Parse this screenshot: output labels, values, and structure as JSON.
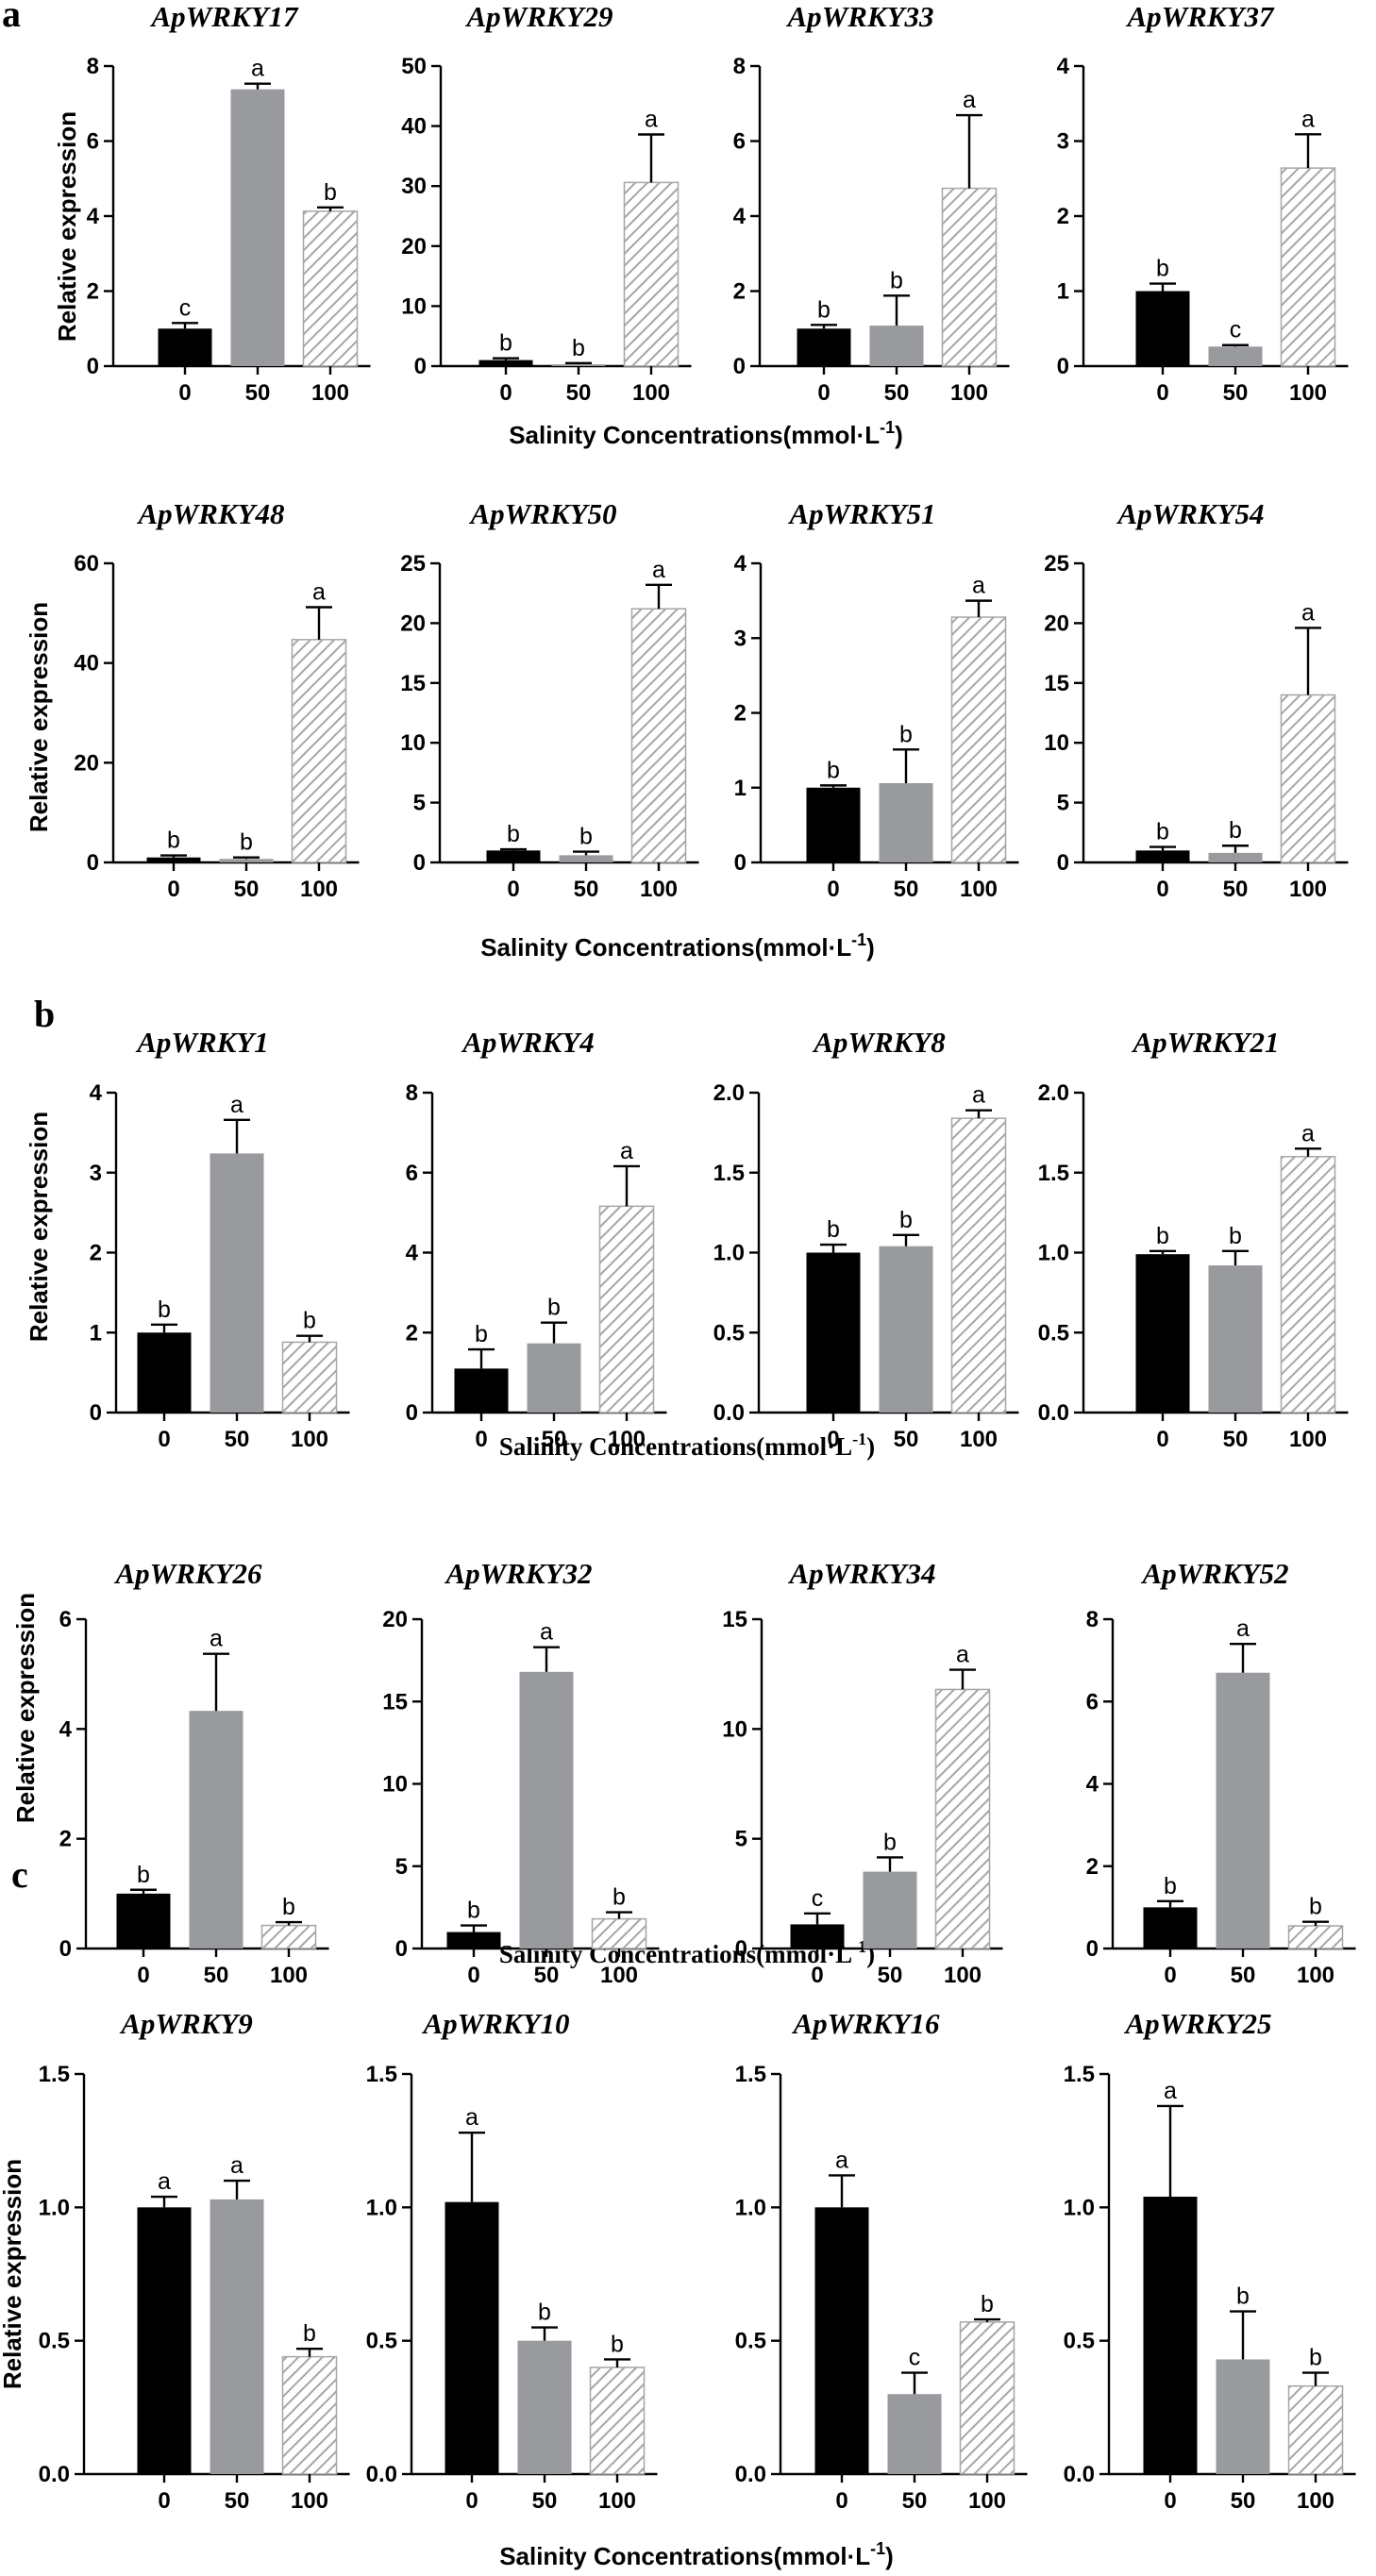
{
  "colors": {
    "c0": "#000000",
    "c50": "#999a9e",
    "c100": "#ffffff",
    "hatch": "#a6a6aa",
    "axis": "#000000"
  },
  "labels": {
    "ylabel": "Relative expression",
    "xlabel_prefix": "Salinity Concentrations(mmol·L",
    "xlabel_sup": "-1",
    "xlabel_suffix": ")"
  },
  "panels": [
    {
      "letter": "a"
    },
    {
      "letter": "b"
    },
    {
      "letter": "c"
    }
  ],
  "chart_data": [
    {
      "type": "bar",
      "title": "ApWRKY17",
      "categories": [
        "0",
        "50",
        "100"
      ],
      "values": [
        1,
        7.38,
        4.13
      ],
      "errors": [
        0.15,
        0.15,
        0.1
      ],
      "sig": [
        "c",
        "a",
        "b"
      ],
      "ylim": [
        0,
        8
      ],
      "yticks": [
        "0",
        "2",
        "4",
        "6",
        "8"
      ]
    },
    {
      "type": "bar",
      "title": "ApWRKY29",
      "categories": [
        "0",
        "50",
        "100"
      ],
      "values": [
        1,
        0.3,
        30.6
      ],
      "errors": [
        0.3,
        0.2,
        8.0
      ],
      "sig": [
        "b",
        "b",
        "a"
      ],
      "ylim": [
        0,
        50
      ],
      "yticks": [
        "0",
        "10",
        "20",
        "30",
        "40",
        "50"
      ]
    },
    {
      "type": "bar",
      "title": "ApWRKY33",
      "categories": [
        "0",
        "50",
        "100"
      ],
      "values": [
        1,
        1.08,
        4.74
      ],
      "errors": [
        0.1,
        0.8,
        1.95
      ],
      "sig": [
        "b",
        "b",
        "a"
      ],
      "ylim": [
        0,
        8
      ],
      "yticks": [
        "0",
        "2",
        "4",
        "6",
        "8"
      ]
    },
    {
      "type": "bar",
      "title": "ApWRKY37",
      "categories": [
        "0",
        "50",
        "100"
      ],
      "values": [
        1,
        0.26,
        2.64
      ],
      "errors": [
        0.1,
        0.02,
        0.45
      ],
      "sig": [
        "b",
        "c",
        "a"
      ],
      "ylim": [
        0,
        4
      ],
      "yticks": [
        "0",
        "1",
        "2",
        "3",
        "4"
      ]
    },
    {
      "type": "bar",
      "title": "ApWRKY48",
      "categories": [
        "0",
        "50",
        "100"
      ],
      "values": [
        1,
        0.7,
        44.7
      ],
      "errors": [
        0.4,
        0.3,
        6.5
      ],
      "sig": [
        "b",
        "b",
        "a"
      ],
      "ylim": [
        0,
        60
      ],
      "yticks": [
        "0",
        "20",
        "40",
        "60"
      ]
    },
    {
      "type": "bar",
      "title": "ApWRKY50",
      "categories": [
        "0",
        "50",
        "100"
      ],
      "values": [
        1,
        0.6,
        21.2
      ],
      "errors": [
        0.1,
        0.3,
        2.0
      ],
      "sig": [
        "b",
        "b",
        "a"
      ],
      "ylim": [
        0,
        25
      ],
      "yticks": [
        "0",
        "5",
        "10",
        "15",
        "20",
        "25"
      ]
    },
    {
      "type": "bar",
      "title": "ApWRKY51",
      "categories": [
        "0",
        "50",
        "100"
      ],
      "values": [
        1,
        1.06,
        3.28
      ],
      "errors": [
        0.03,
        0.45,
        0.22
      ],
      "sig": [
        "b",
        "b",
        "a"
      ],
      "ylim": [
        0,
        4
      ],
      "yticks": [
        "0",
        "1",
        "2",
        "3",
        "4"
      ]
    },
    {
      "type": "bar",
      "title": "ApWRKY54",
      "categories": [
        "0",
        "50",
        "100"
      ],
      "values": [
        1,
        0.8,
        14.0
      ],
      "errors": [
        0.3,
        0.6,
        5.6
      ],
      "sig": [
        "b",
        "b",
        "a"
      ],
      "ylim": [
        0,
        25
      ],
      "yticks": [
        "0",
        "5",
        "10",
        "15",
        "20",
        "25"
      ]
    },
    {
      "type": "bar",
      "title": "ApWRKY1",
      "categories": [
        "0",
        "50",
        "100"
      ],
      "values": [
        1,
        3.24,
        0.88
      ],
      "errors": [
        0.1,
        0.42,
        0.08
      ],
      "sig": [
        "b",
        "a",
        "b"
      ],
      "ylim": [
        0,
        4
      ],
      "yticks": [
        "0",
        "1",
        "2",
        "3",
        "4"
      ]
    },
    {
      "type": "bar",
      "title": "ApWRKY4",
      "categories": [
        "0",
        "50",
        "100"
      ],
      "values": [
        1.1,
        1.73,
        5.16
      ],
      "errors": [
        0.48,
        0.52,
        1.0
      ],
      "sig": [
        "b",
        "b",
        "a"
      ],
      "ylim": [
        0,
        8
      ],
      "yticks": [
        "0",
        "2",
        "4",
        "6",
        "8"
      ]
    },
    {
      "type": "bar",
      "title": "ApWRKY8",
      "categories": [
        "0",
        "50",
        "100"
      ],
      "values": [
        1,
        1.04,
        1.84
      ],
      "errors": [
        0.05,
        0.07,
        0.05
      ],
      "sig": [
        "b",
        "b",
        "a"
      ],
      "ylim": [
        0,
        2
      ],
      "yticks": [
        "0.0",
        "0.5",
        "1.0",
        "1.5",
        "2.0"
      ]
    },
    {
      "type": "bar",
      "title": "ApWRKY21",
      "categories": [
        "0",
        "50",
        "100"
      ],
      "values": [
        0.99,
        0.92,
        1.6
      ],
      "errors": [
        0.02,
        0.09,
        0.05
      ],
      "sig": [
        "b",
        "b",
        "a"
      ],
      "ylim": [
        0,
        2
      ],
      "yticks": [
        "0.0",
        "0.5",
        "1.0",
        "1.5",
        "2.0"
      ]
    },
    {
      "type": "bar",
      "title": "ApWRKY26",
      "categories": [
        "0",
        "50",
        "100"
      ],
      "values": [
        1,
        4.33,
        0.42
      ],
      "errors": [
        0.07,
        1.04,
        0.06
      ],
      "sig": [
        "b",
        "a",
        "b"
      ],
      "ylim": [
        0,
        6
      ],
      "yticks": [
        "0",
        "2",
        "4",
        "6"
      ]
    },
    {
      "type": "bar",
      "title": "ApWRKY32",
      "categories": [
        "0",
        "50",
        "100"
      ],
      "values": [
        1,
        16.8,
        1.8
      ],
      "errors": [
        0.4,
        1.5,
        0.4
      ],
      "sig": [
        "b",
        "a",
        "b"
      ],
      "ylim": [
        0,
        20
      ],
      "yticks": [
        "0",
        "5",
        "10",
        "15",
        "20"
      ]
    },
    {
      "type": "bar",
      "title": "ApWRKY34",
      "categories": [
        "0",
        "50",
        "100"
      ],
      "values": [
        1.1,
        3.5,
        11.8
      ],
      "errors": [
        0.5,
        0.65,
        0.9
      ],
      "sig": [
        "c",
        "b",
        "a"
      ],
      "ylim": [
        0,
        15
      ],
      "yticks": [
        "0",
        "5",
        "10",
        "15"
      ]
    },
    {
      "type": "bar",
      "title": "ApWRKY52",
      "categories": [
        "0",
        "50",
        "100"
      ],
      "values": [
        1,
        6.7,
        0.55
      ],
      "errors": [
        0.15,
        0.7,
        0.1
      ],
      "sig": [
        "b",
        "a",
        "b"
      ],
      "ylim": [
        0,
        8
      ],
      "yticks": [
        "0",
        "2",
        "4",
        "6",
        "8"
      ]
    },
    {
      "type": "bar",
      "title": "ApWRKY9",
      "categories": [
        "0",
        "50",
        "100"
      ],
      "values": [
        1,
        1.03,
        0.44
      ],
      "errors": [
        0.04,
        0.07,
        0.03
      ],
      "sig": [
        "a",
        "a",
        "b"
      ],
      "ylim": [
        0,
        1.5
      ],
      "yticks": [
        "0.0",
        "0.5",
        "1.0",
        "1.5"
      ]
    },
    {
      "type": "bar",
      "title": "ApWRKY10",
      "categories": [
        "0",
        "50",
        "100"
      ],
      "values": [
        1.02,
        0.5,
        0.4
      ],
      "errors": [
        0.26,
        0.05,
        0.03
      ],
      "sig": [
        "a",
        "b",
        "b"
      ],
      "ylim": [
        0,
        1.5
      ],
      "yticks": [
        "0.0",
        "0.5",
        "1.0",
        "1.5"
      ]
    },
    {
      "type": "bar",
      "title": "ApWRKY16",
      "categories": [
        "0",
        "50",
        "100"
      ],
      "values": [
        1,
        0.3,
        0.57
      ],
      "errors": [
        0.12,
        0.08,
        0.01
      ],
      "sig": [
        "a",
        "c",
        "b"
      ],
      "ylim": [
        0,
        1.5
      ],
      "yticks": [
        "0.0",
        "0.5",
        "1.0",
        "1.5"
      ]
    },
    {
      "type": "bar",
      "title": "ApWRKY25",
      "categories": [
        "0",
        "50",
        "100"
      ],
      "values": [
        1.04,
        0.43,
        0.33
      ],
      "errors": [
        0.34,
        0.18,
        0.05
      ],
      "sig": [
        "a",
        "b",
        "b"
      ],
      "ylim": [
        0,
        1.5
      ],
      "yticks": [
        "0.0",
        "0.5",
        "1.0",
        "1.5"
      ]
    }
  ]
}
